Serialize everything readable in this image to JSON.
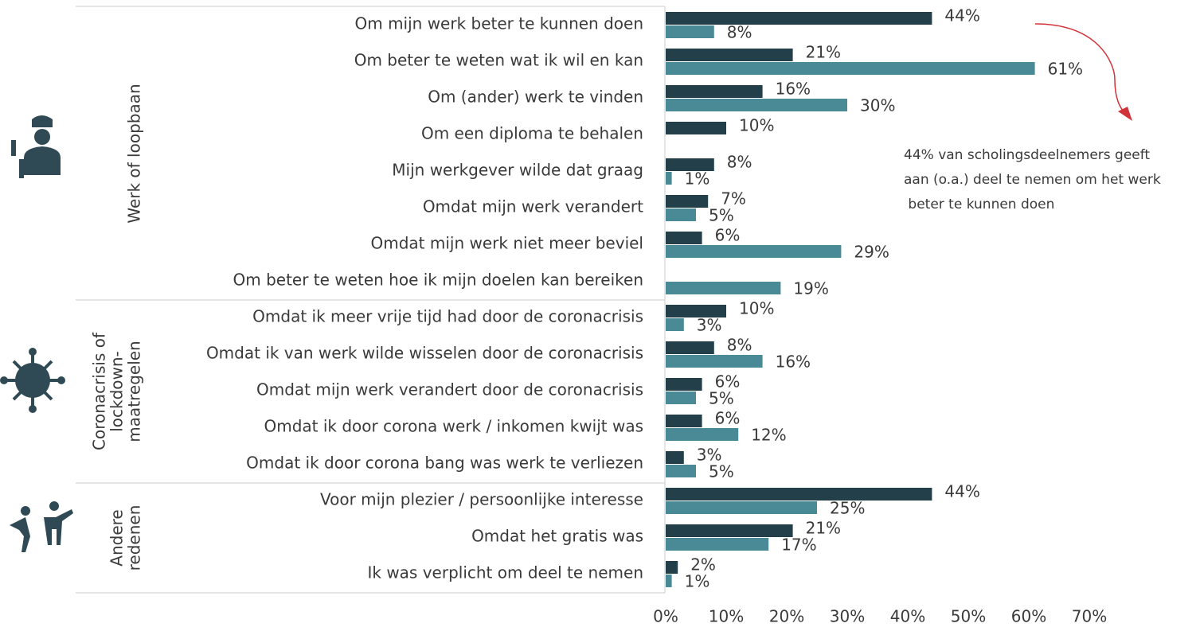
{
  "chart_data": {
    "type": "bar",
    "orientation": "horizontal",
    "groups": [
      {
        "label": [
          "Werk of loopbaan"
        ],
        "categories": [
          "Om mijn werk beter te kunnen doen",
          "Om beter te weten wat ik wil en kan",
          "Om (ander) werk te vinden",
          "Om een diploma te behalen",
          "Mijn werkgever wilde dat graag",
          "Omdat mijn werk verandert",
          "Omdat mijn werk niet meer beviel",
          "Om beter te weten hoe ik mijn doelen kan bereiken"
        ]
      },
      {
        "label": [
          "Coronacrisis of",
          "lockdown-",
          "maatregelen"
        ],
        "categories": [
          "Omdat ik meer vrije tijd had door de coronacrisis",
          "Omdat ik van werk wilde wisselen door de coronacrisis",
          "Omdat mijn werk verandert door de coronacrisis",
          "Omdat ik door corona werk / inkomen kwijt was",
          "Omdat ik door corona bang was werk te verliezen"
        ]
      },
      {
        "label": [
          "Andere",
          "redenen"
        ],
        "categories": [
          "Voor mijn plezier / persoonlijke interesse",
          "Omdat het gratis was",
          "Ik was verplicht om deel te nemen"
        ]
      }
    ],
    "series": [
      {
        "color": "#23404a",
        "values": [
          44,
          21,
          16,
          10,
          8,
          7,
          6,
          null,
          10,
          8,
          6,
          6,
          3,
          44,
          21,
          2
        ],
        "value_labels": [
          "44%",
          "21%",
          "16%",
          "10%",
          "8%",
          "7%",
          "6%",
          null,
          "10%",
          "8%",
          "6%",
          "6%",
          "3%",
          "44%",
          "21%",
          "2%"
        ]
      },
      {
        "color": "#4a8a96",
        "values": [
          8,
          61,
          30,
          null,
          1,
          5,
          29,
          19,
          3,
          16,
          5,
          12,
          5,
          25,
          17,
          1
        ],
        "value_labels": [
          "8%",
          "61%",
          "30%",
          null,
          "1%",
          "5%",
          "29%",
          "19%",
          "3%",
          "16%",
          "5%",
          "12%",
          "5%",
          "25%",
          "17%",
          "1%"
        ]
      }
    ],
    "xlim": [
      0,
      70
    ],
    "xticks": [
      {
        "value": 0,
        "label": "0%"
      },
      {
        "value": 10,
        "label": "10%"
      },
      {
        "value": 20,
        "label": "20%"
      },
      {
        "value": 30,
        "label": "30%"
      },
      {
        "value": 40,
        "label": "40%"
      },
      {
        "value": 50,
        "label": "50%"
      },
      {
        "value": 60,
        "label": "60%"
      },
      {
        "value": 70,
        "label": "70%"
      }
    ],
    "annotation": [
      "44% van scholingsdeelnemers geeft",
      "aan (o.a.) deel te nemen om het werk",
      " beter te kunnen doen"
    ],
    "annotation_color": "#d0343a"
  }
}
